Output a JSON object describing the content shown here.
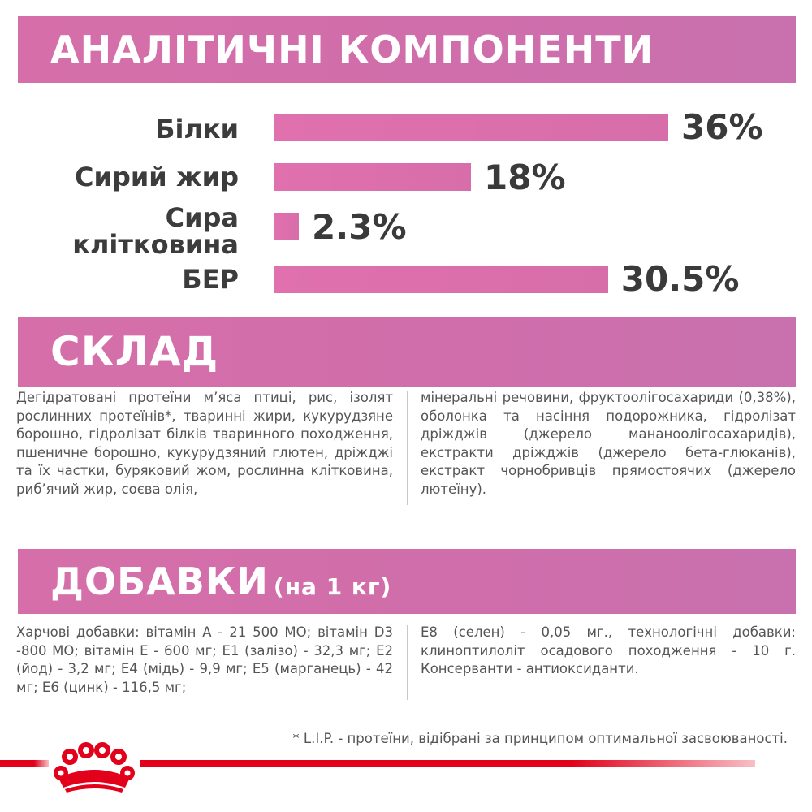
{
  "analytic": {
    "title": "АНАЛІТИЧНІ КОМПОНЕНТИ",
    "items": [
      {
        "label": "Білки",
        "value": "36%",
        "percent": 36
      },
      {
        "label": "Сирий жир",
        "value": "18%",
        "percent": 18
      },
      {
        "label_line1": "Сира",
        "label_line2": "клітковина",
        "value": "2.3%",
        "percent": 2.3
      },
      {
        "label": "БЕР",
        "value": "30.5%",
        "percent": 30.5
      }
    ]
  },
  "composition": {
    "title": "СКЛАД",
    "left_text": "Дегідратовані протеїни м’яса птиці, рис, ізолят рослинних протеїнів*, тваринні жири, кукурудзяне борошно, гідролізат білків тваринного походження, пшеничне борошно, кукурудзяний глютен, дріжджі та їх частки, буряковий жом, рослинна клітковина, риб’ячий жир, соєва олія,",
    "right_text": "мінеральні речовини, фруктоолігосахариди (0,38%), оболонка та насіння подорожника, гідролізат дріжджів (джерело мананоолігосахаридів), екстракти дріжджів (джерело бета-глюканів), екстракт чорнобривців прямостоячих (джерело лютеїну)."
  },
  "additives": {
    "title": "ДОБАВКИ",
    "subtitle": "(на 1 кг)",
    "left_text": "Харчові добавки: вітамін А - 21 500 МО; вітамін D3 -800 МО; вітамін Е - 600 мг; Е1 (залізо) - 32,3 мг; Е2 (йод) - 3,2 мг; Е4 (мідь) - 9,9 мг; Е5 (марганець) - 42 мг; Е6 (цинк) - 116,5 мг;",
    "right_text": "Е8 (селен) - 0,05 мг., технологічні добавки: клиноптилоліт осадового походження - 10 г. Консерванти - антиоксиданти."
  },
  "footnote": "* L.I.P. - протеїни, відібрані за принципом оптимальної засвоюваності.",
  "colors": {
    "banner": "#d66fa9",
    "bar": "#dd70ac",
    "brand_red": "#e2001a"
  },
  "logo_icon": "royal-canin-crown-icon"
}
